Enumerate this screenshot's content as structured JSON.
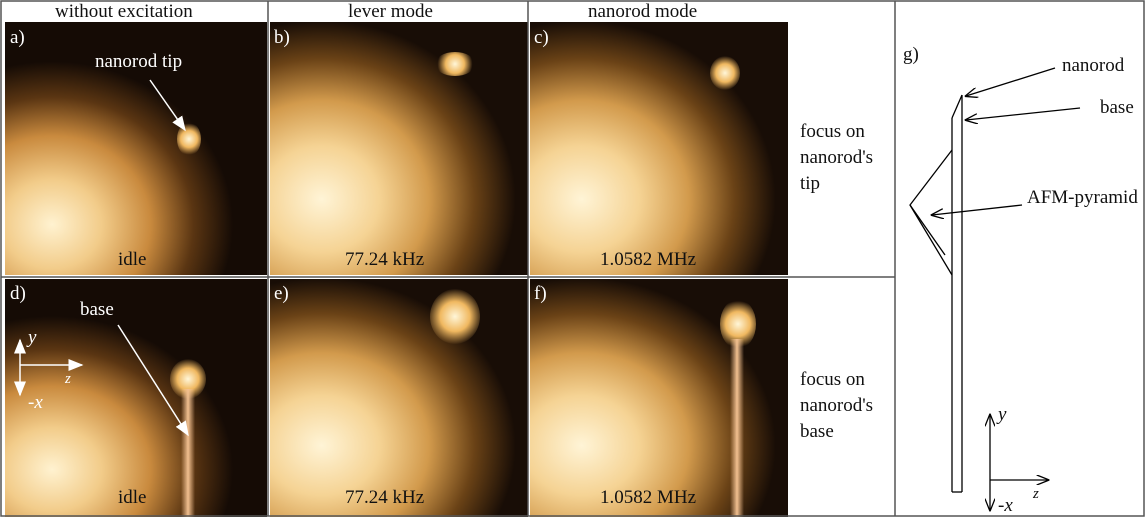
{
  "header": {
    "columns": [
      "without excitation",
      "lever mode",
      "nanorod mode"
    ]
  },
  "panels": [
    {
      "label": "a)",
      "annotation": "nanorod tip",
      "caption": "idle"
    },
    {
      "label": "b)",
      "caption": "77.24 kHz"
    },
    {
      "label": "c)",
      "caption": "1.0582 MHz"
    },
    {
      "label": "d)",
      "annotation": "base",
      "caption": "idle",
      "axes": {
        "y": "y",
        "z": "z",
        "x": "-x"
      }
    },
    {
      "label": "e)",
      "caption": "77.24 kHz"
    },
    {
      "label": "f)",
      "caption": "1.0582 MHz"
    }
  ],
  "row_labels": [
    [
      "focus on",
      "nanorod's",
      "tip"
    ],
    [
      "focus on",
      "nanorod's",
      "base"
    ]
  ],
  "diagram": {
    "label": "g)",
    "callouts": [
      "nanorod",
      "base",
      "AFM-pyramid"
    ],
    "axes": {
      "y": "y",
      "z": "z",
      "x": "-x"
    }
  }
}
